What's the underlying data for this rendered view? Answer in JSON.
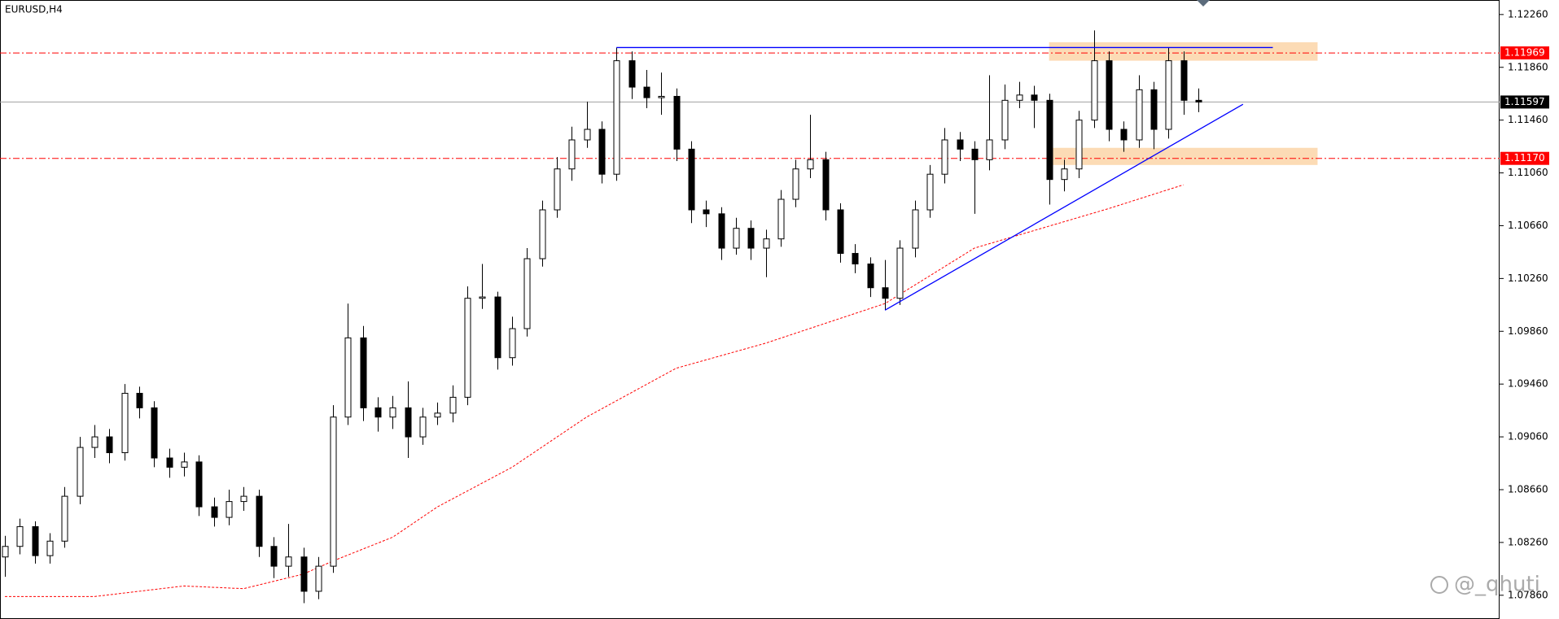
{
  "chart_data": {
    "type": "candlestick",
    "title": "EURUSD,H4",
    "watermark": "@_qhuti",
    "xlim": [
      -0.33,
      100.2
    ],
    "ylim": [
      1.0768,
      1.1237
    ],
    "yticks": [
      {
        "value": 1.1226,
        "label": "1.12260"
      },
      {
        "value": 1.1186,
        "label": "1.11860"
      },
      {
        "value": 1.1146,
        "label": "1.11460"
      },
      {
        "value": 1.1106,
        "label": "1.11060"
      },
      {
        "value": 1.1066,
        "label": "1.10660"
      },
      {
        "value": 1.1026,
        "label": "1.10260"
      },
      {
        "value": 1.0986,
        "label": "1.09860"
      },
      {
        "value": 1.0946,
        "label": "1.09460"
      },
      {
        "value": 1.0906,
        "label": "1.09060"
      },
      {
        "value": 1.0866,
        "label": "1.08660"
      },
      {
        "value": 1.0826,
        "label": "1.08260"
      },
      {
        "value": 1.0786,
        "label": "1.07860"
      }
    ],
    "grid": false,
    "bull_color": "#ffffff",
    "bear_color": "#000000",
    "candles": [
      [
        1.0815,
        1.0831,
        1.08,
        1.0823
      ],
      [
        1.0823,
        1.0844,
        1.0817,
        1.0838
      ],
      [
        1.0838,
        1.0842,
        1.081,
        1.0816
      ],
      [
        1.0816,
        1.0833,
        1.081,
        1.0827
      ],
      [
        1.0827,
        1.0868,
        1.0822,
        1.0861
      ],
      [
        1.0861,
        1.0906,
        1.0855,
        1.0898
      ],
      [
        1.0898,
        1.0915,
        1.089,
        1.0906
      ],
      [
        1.0906,
        1.0912,
        1.0886,
        1.0894
      ],
      [
        1.0894,
        1.0946,
        1.0888,
        1.0939
      ],
      [
        1.0939,
        1.0944,
        1.092,
        1.0928
      ],
      [
        1.0928,
        1.0933,
        1.0883,
        1.089
      ],
      [
        1.089,
        1.0897,
        1.0875,
        1.0883
      ],
      [
        1.0883,
        1.0894,
        1.0876,
        1.0887
      ],
      [
        1.0887,
        1.0892,
        1.0846,
        1.0853
      ],
      [
        1.0853,
        1.086,
        1.0838,
        1.0845
      ],
      [
        1.0845,
        1.0866,
        1.0839,
        1.0857
      ],
      [
        1.0857,
        1.0868,
        1.085,
        1.0861
      ],
      [
        1.0861,
        1.0866,
        1.0815,
        1.0823
      ],
      [
        1.0823,
        1.083,
        1.0799,
        1.0808
      ],
      [
        1.0808,
        1.084,
        1.08,
        1.0815
      ],
      [
        1.0815,
        1.0822,
        1.078,
        1.0789
      ],
      [
        1.0789,
        1.0815,
        1.0783,
        1.0808
      ],
      [
        1.0808,
        1.093,
        1.0803,
        1.0921
      ],
      [
        1.0921,
        1.1007,
        1.0915,
        1.0981
      ],
      [
        1.0981,
        1.099,
        1.0918,
        1.0928
      ],
      [
        1.0928,
        1.0936,
        1.091,
        1.0921
      ],
      [
        1.0921,
        1.0937,
        1.0912,
        1.0928
      ],
      [
        1.0928,
        1.0948,
        1.089,
        1.0906
      ],
      [
        1.0906,
        1.0928,
        1.09,
        1.0921
      ],
      [
        1.0921,
        1.0932,
        1.0915,
        1.0924
      ],
      [
        1.0924,
        1.0945,
        1.0917,
        1.0936
      ],
      [
        1.0936,
        1.102,
        1.093,
        1.1011
      ],
      [
        1.1011,
        1.1037,
        1.1003,
        1.1012
      ],
      [
        1.1012,
        1.1016,
        1.0957,
        1.0966
      ],
      [
        1.0966,
        1.0997,
        1.096,
        1.0988
      ],
      [
        1.0988,
        1.1049,
        1.0982,
        1.1041
      ],
      [
        1.1041,
        1.1085,
        1.1035,
        1.1078
      ],
      [
        1.1078,
        1.1118,
        1.1072,
        1.1109
      ],
      [
        1.1109,
        1.1141,
        1.11,
        1.1131
      ],
      [
        1.1131,
        1.116,
        1.1125,
        1.1139
      ],
      [
        1.1139,
        1.1145,
        1.1098,
        1.1105
      ],
      [
        1.1105,
        1.1201,
        1.11,
        1.1191
      ],
      [
        1.1191,
        1.1198,
        1.1162,
        1.1171
      ],
      [
        1.1171,
        1.1184,
        1.1155,
        1.1163
      ],
      [
        1.1163,
        1.1182,
        1.115,
        1.1164
      ],
      [
        1.1164,
        1.117,
        1.1115,
        1.1124
      ],
      [
        1.1124,
        1.113,
        1.1068,
        1.1078
      ],
      [
        1.1078,
        1.1085,
        1.1065,
        1.1075
      ],
      [
        1.1075,
        1.108,
        1.104,
        1.1049
      ],
      [
        1.1049,
        1.1072,
        1.1044,
        1.1064
      ],
      [
        1.1064,
        1.107,
        1.104,
        1.1049
      ],
      [
        1.1049,
        1.1063,
        1.1027,
        1.1056
      ],
      [
        1.1056,
        1.1093,
        1.105,
        1.1086
      ],
      [
        1.1086,
        1.1116,
        1.108,
        1.1109
      ],
      [
        1.1109,
        1.115,
        1.1102,
        1.1116
      ],
      [
        1.1116,
        1.1122,
        1.107,
        1.1078
      ],
      [
        1.1078,
        1.1083,
        1.1038,
        1.1045
      ],
      [
        1.1045,
        1.1052,
        1.103,
        1.1037
      ],
      [
        1.1037,
        1.1042,
        1.1012,
        1.1019
      ],
      [
        1.1019,
        1.104,
        1.1002,
        1.1011
      ],
      [
        1.1011,
        1.1055,
        1.1006,
        1.1049
      ],
      [
        1.1049,
        1.1085,
        1.1042,
        1.1078
      ],
      [
        1.1078,
        1.1112,
        1.1072,
        1.1105
      ],
      [
        1.1105,
        1.114,
        1.1098,
        1.1131
      ],
      [
        1.1131,
        1.1137,
        1.1115,
        1.1124
      ],
      [
        1.1124,
        1.113,
        1.1075,
        1.1116
      ],
      [
        1.1116,
        1.118,
        1.1108,
        1.1131
      ],
      [
        1.1131,
        1.1173,
        1.1124,
        1.1161
      ],
      [
        1.1161,
        1.1175,
        1.1155,
        1.1165
      ],
      [
        1.1165,
        1.1172,
        1.114,
        1.1161
      ],
      [
        1.1161,
        1.1166,
        1.1082,
        1.1101
      ],
      [
        1.1101,
        1.1116,
        1.1092,
        1.1109
      ],
      [
        1.1109,
        1.1153,
        1.1102,
        1.1146
      ],
      [
        1.1146,
        1.1214,
        1.114,
        1.1191
      ],
      [
        1.1191,
        1.1198,
        1.113,
        1.1139
      ],
      [
        1.1139,
        1.1145,
        1.1122,
        1.1131
      ],
      [
        1.1131,
        1.118,
        1.1125,
        1.1169
      ],
      [
        1.1169,
        1.1175,
        1.1124,
        1.1139
      ],
      [
        1.1139,
        1.1201,
        1.1132,
        1.1191
      ],
      [
        1.1191,
        1.1198,
        1.115,
        1.1161
      ],
      [
        1.1161,
        1.117,
        1.1152,
        1.11597
      ]
    ],
    "ma": {
      "color": "#ff0000",
      "x": [
        0,
        6,
        12,
        16,
        20,
        22,
        26,
        29,
        34,
        39,
        45,
        51,
        55,
        59,
        65,
        74,
        79
      ],
      "values": [
        1.0785,
        1.0785,
        1.0793,
        1.0791,
        1.0802,
        1.0812,
        1.083,
        1.0853,
        1.0883,
        1.0921,
        1.0958,
        1.0977,
        1.0992,
        1.1007,
        1.1049,
        1.1079,
        1.1097
      ]
    },
    "trendlines": [
      {
        "color": "#0000ff",
        "x": [
          41,
          85
        ],
        "values": [
          1.1201,
          1.1201
        ]
      },
      {
        "color": "#0000ff",
        "x": [
          59,
          83
        ],
        "values": [
          1.1002,
          1.1158
        ]
      }
    ],
    "zones": [
      {
        "color": "#fbd5a8",
        "x": [
          70,
          88
        ],
        "values": [
          1.1191,
          1.1205
        ]
      },
      {
        "color": "#fbd5a8",
        "x": [
          70,
          88
        ],
        "values": [
          1.1112,
          1.1125
        ]
      }
    ],
    "level_color": "#ff0000",
    "levels": [
      1.11969,
      {
        "value": 1.1117,
        "label": "1.11170"
      }
    ],
    "current_color": "#000000",
    "current_price": 1.11597
  }
}
